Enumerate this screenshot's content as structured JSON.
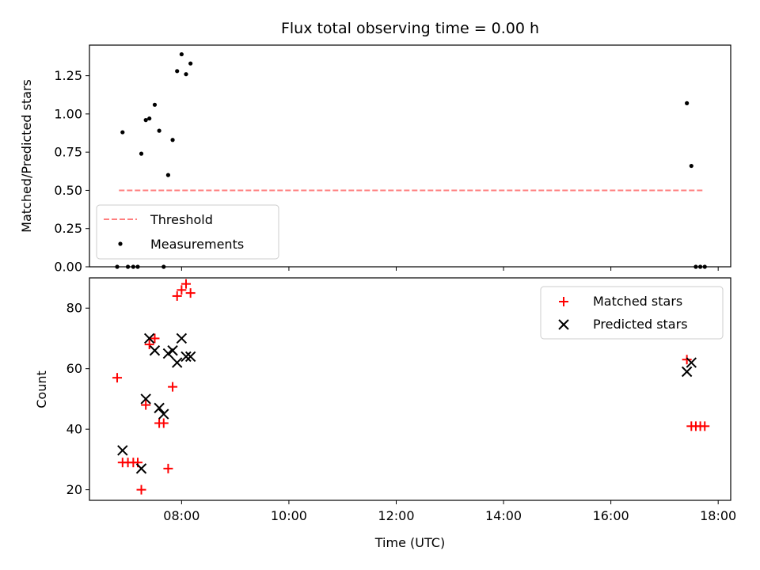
{
  "chart_data": [
    {
      "type": "scatter",
      "title": "Flux total observing time = 0.00 h",
      "xlabel": "",
      "ylabel": "Matched/Predicted stars",
      "xlim": [
        "06:17",
        "18:14"
      ],
      "ylim": [
        0,
        1.45
      ],
      "yticks": [
        "0.00",
        "0.25",
        "0.50",
        "0.75",
        "1.00",
        "1.25"
      ],
      "legend_position": "lower-left",
      "series": [
        {
          "name": "Threshold",
          "kind": "dashed-line",
          "color": "#ff7f7f",
          "x": [
            "06:50",
            "17:45"
          ],
          "y": [
            0.5,
            0.5
          ]
        },
        {
          "name": "Measurements",
          "kind": "dots",
          "color": "#000000",
          "x": [
            "06:48",
            "06:54",
            "07:00",
            "07:06",
            "07:11",
            "07:15",
            "07:20",
            "07:24",
            "07:30",
            "07:35",
            "07:40",
            "07:45",
            "07:50",
            "07:55",
            "08:00",
            "08:05",
            "08:10",
            "17:25",
            "17:30",
            "17:35",
            "17:40",
            "17:45"
          ],
          "y": [
            0.0,
            0.88,
            0.0,
            0.0,
            0.0,
            0.74,
            0.96,
            0.97,
            1.06,
            0.89,
            0.0,
            0.6,
            0.83,
            1.28,
            1.39,
            1.26,
            1.33,
            1.07,
            0.66,
            0.0,
            0.0,
            0.0
          ]
        }
      ]
    },
    {
      "type": "scatter",
      "title": "",
      "xlabel": "Time (UTC)",
      "ylabel": "Count",
      "xlim": [
        "06:17",
        "18:14"
      ],
      "ylim": [
        16.5,
        90
      ],
      "xticks": [
        "08:00",
        "10:00",
        "12:00",
        "14:00",
        "16:00",
        "18:00"
      ],
      "yticks": [
        "20",
        "40",
        "60",
        "80"
      ],
      "legend_position": "top-right",
      "series": [
        {
          "name": "Matched stars",
          "marker": "plus",
          "color": "#ff0000",
          "x": [
            "06:48",
            "06:54",
            "07:00",
            "07:06",
            "07:11",
            "07:15",
            "07:20",
            "07:24",
            "07:30",
            "07:35",
            "07:40",
            "07:45",
            "07:50",
            "07:55",
            "08:00",
            "08:05",
            "08:10",
            "17:25",
            "17:30",
            "17:35",
            "17:40",
            "17:45"
          ],
          "y": [
            57,
            29,
            29,
            29,
            29,
            20,
            48,
            68,
            70,
            42,
            42,
            27,
            54,
            84,
            86,
            88,
            85,
            63,
            41,
            41,
            41,
            41
          ]
        },
        {
          "name": "Predicted stars",
          "marker": "x",
          "color": "#000000",
          "x": [
            "06:54",
            "07:15",
            "07:20",
            "07:24",
            "07:30",
            "07:35",
            "07:40",
            "07:45",
            "07:50",
            "07:55",
            "08:00",
            "08:05",
            "08:10",
            "17:25",
            "17:30"
          ],
          "y": [
            33,
            27,
            50,
            70,
            66,
            47,
            45,
            65,
            66,
            62,
            70,
            64,
            64,
            59,
            62
          ]
        }
      ]
    }
  ]
}
